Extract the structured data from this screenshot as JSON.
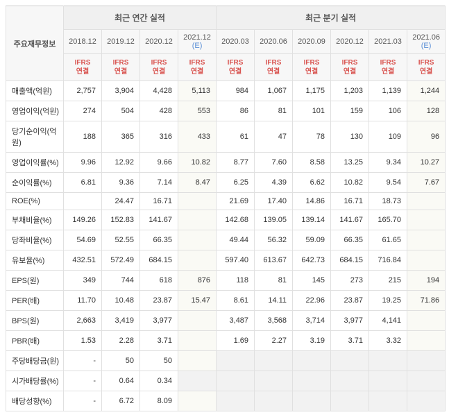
{
  "headers": {
    "main_label": "주요재무정보",
    "group_annual": "최근 연간 실적",
    "group_quarter": "최근 분기 실적",
    "periods": [
      "2018.12",
      "2019.12",
      "2020.12",
      "2021.12 (E)",
      "2020.03",
      "2020.06",
      "2020.09",
      "2020.12",
      "2021.03",
      "2021.06 (E)"
    ],
    "sub": "IFRS\n연결",
    "est_indices": [
      3,
      9
    ]
  },
  "rows": [
    {
      "label": "매출액(억원)",
      "vals": [
        "2,757",
        "3,904",
        "4,428",
        "5,113",
        "984",
        "1,067",
        "1,175",
        "1,203",
        "1,139",
        "1,244"
      ]
    },
    {
      "label": "영업이익(억원)",
      "vals": [
        "274",
        "504",
        "428",
        "553",
        "86",
        "81",
        "101",
        "159",
        "106",
        "128"
      ]
    },
    {
      "label": "당기순이익(억원)",
      "vals": [
        "188",
        "365",
        "316",
        "433",
        "61",
        "47",
        "78",
        "130",
        "109",
        "96"
      ]
    },
    {
      "label": "영업이익률(%)",
      "vals": [
        "9.96",
        "12.92",
        "9.66",
        "10.82",
        "8.77",
        "7.60",
        "8.58",
        "13.25",
        "9.34",
        "10.27"
      ]
    },
    {
      "label": "순이익률(%)",
      "vals": [
        "6.81",
        "9.36",
        "7.14",
        "8.47",
        "6.25",
        "4.39",
        "6.62",
        "10.82",
        "9.54",
        "7.67"
      ]
    },
    {
      "label": "ROE(%)",
      "vals": [
        "",
        "24.47",
        "16.71",
        "",
        "21.69",
        "17.40",
        "14.86",
        "16.71",
        "18.73",
        ""
      ]
    },
    {
      "label": "부채비율(%)",
      "vals": [
        "149.26",
        "152.83",
        "141.67",
        "",
        "142.68",
        "139.05",
        "139.14",
        "141.67",
        "165.70",
        ""
      ]
    },
    {
      "label": "당좌비율(%)",
      "vals": [
        "54.69",
        "52.55",
        "66.35",
        "",
        "49.44",
        "56.32",
        "59.09",
        "66.35",
        "61.65",
        ""
      ]
    },
    {
      "label": "유보율(%)",
      "vals": [
        "432.51",
        "572.49",
        "684.15",
        "",
        "597.40",
        "613.67",
        "642.73",
        "684.15",
        "716.84",
        ""
      ]
    },
    {
      "label": "EPS(원)",
      "vals": [
        "349",
        "744",
        "618",
        "876",
        "118",
        "81",
        "145",
        "273",
        "215",
        "194"
      ]
    },
    {
      "label": "PER(배)",
      "vals": [
        "11.70",
        "10.48",
        "23.87",
        "15.47",
        "8.61",
        "14.11",
        "22.96",
        "23.87",
        "19.25",
        "71.86"
      ]
    },
    {
      "label": "BPS(원)",
      "vals": [
        "2,663",
        "3,419",
        "3,977",
        "",
        "3,487",
        "3,568",
        "3,714",
        "3,977",
        "4,141",
        ""
      ]
    },
    {
      "label": "PBR(배)",
      "vals": [
        "1.53",
        "2.28",
        "3.71",
        "",
        "1.69",
        "2.27",
        "3.19",
        "3.71",
        "3.32",
        ""
      ]
    },
    {
      "label": "주당배당금(원)",
      "vals": [
        "-",
        "50",
        "50",
        "",
        "",
        "",
        "",
        "",
        "",
        ""
      ],
      "shade": [
        4,
        5,
        6,
        7,
        8,
        9
      ]
    },
    {
      "label": "시가배당률(%)",
      "vals": [
        "-",
        "0.64",
        "0.34",
        "",
        "",
        "",
        "",
        "",
        "",
        ""
      ],
      "shade": [
        3,
        4,
        5,
        6,
        7,
        8,
        9
      ]
    },
    {
      "label": "배당성향(%)",
      "vals": [
        "-",
        "6.72",
        "8.09",
        "",
        "",
        "",
        "",
        "",
        "",
        ""
      ],
      "shade": [
        4,
        5,
        6,
        7,
        8,
        9
      ]
    }
  ]
}
